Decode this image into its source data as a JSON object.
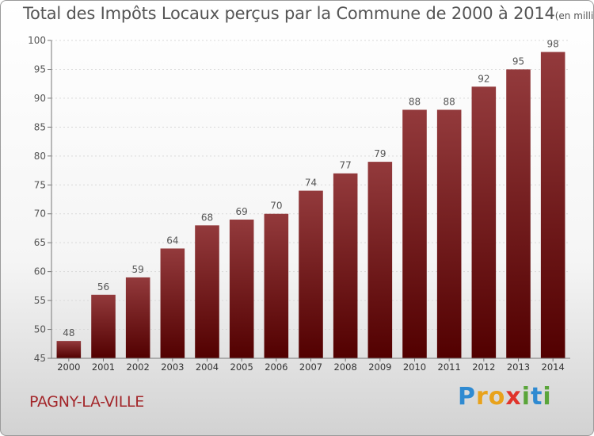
{
  "title": {
    "main": "Total des Impôts Locaux perçus par la Commune de 2000 à 2014",
    "unit": "(en milliers d'€)"
  },
  "commune_name": "PAGNY-LA-VILLE",
  "logo": {
    "letters": [
      "P",
      "r",
      "o",
      "x",
      "i",
      "t",
      "i"
    ],
    "colors": [
      "#2f8ad1",
      "#e8a21b",
      "#e8a21b",
      "#e0342b",
      "#5aa53a",
      "#2f8ad1",
      "#5aa53a"
    ]
  },
  "colors": {
    "bar_light": "#933a3c",
    "bar_dark": "#520000",
    "axis": "#777777",
    "grid": "#d9d9d9",
    "text": "#555555"
  },
  "chart_data": {
    "type": "bar",
    "title": "Total des Impôts Locaux perçus par la Commune de 2000 à 2014",
    "xlabel": "",
    "ylabel": "en milliers d'€",
    "categories": [
      "2000",
      "2001",
      "2002",
      "2003",
      "2004",
      "2005",
      "2006",
      "2007",
      "2008",
      "2009",
      "2010",
      "2011",
      "2012",
      "2013",
      "2014"
    ],
    "values": [
      48,
      56,
      59,
      64,
      68,
      69,
      70,
      74,
      77,
      79,
      88,
      88,
      92,
      95,
      98
    ],
    "ylim": [
      45,
      100
    ],
    "yticks": [
      45,
      50,
      55,
      60,
      65,
      70,
      75,
      80,
      85,
      90,
      95,
      100
    ],
    "grid": true,
    "legend": "none"
  }
}
